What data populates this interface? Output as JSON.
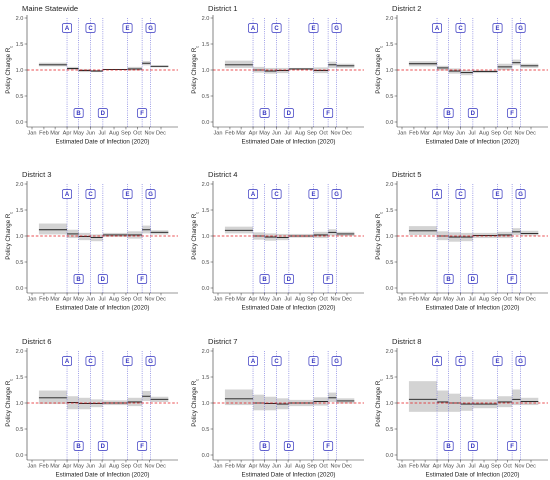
{
  "colors": {
    "reference_line": "#e41a1c",
    "policy_line": "#6c6cd9",
    "policy_label": "#3434c0",
    "band": "#cfcfcf",
    "estimate": "#1a1a1a",
    "axis": "#333333"
  },
  "chart_data": [
    {
      "type": "line",
      "title": "Maine Statewide",
      "xlabel": "Estimated Date of Infection (2020)",
      "ylabel": "Policy Change R",
      "ylabel_subscript": "t",
      "ylim": [
        0,
        2
      ],
      "grid": false,
      "y_ticks": [
        "0.0",
        "0.5",
        "1.0",
        "1.5",
        "2.0"
      ],
      "x_ticks": [
        "Jan",
        "Feb",
        "Mar",
        "Apr",
        "May",
        "Jun",
        "Jul",
        "Aug",
        "Sep",
        "Oct",
        "Nov",
        "Dec"
      ],
      "reference_line": 1.0,
      "policies": [
        {
          "label": "A",
          "date": "2020-04-01"
        },
        {
          "label": "B",
          "date": "2020-05-01"
        },
        {
          "label": "C",
          "date": "2020-06-01"
        },
        {
          "label": "D",
          "date": "2020-07-03"
        },
        {
          "label": "E",
          "date": "2020-09-05"
        },
        {
          "label": "F",
          "date": "2020-10-13"
        },
        {
          "label": "G",
          "date": "2020-11-04"
        }
      ],
      "segment_breaks": [
        "2020-01-19",
        "2020-04-01",
        "2020-05-01",
        "2020-06-01",
        "2020-07-03",
        "2020-09-05",
        "2020-10-13",
        "2020-11-04",
        "2020-12-20"
      ],
      "rt": [
        1.1,
        1.03,
        0.99,
        0.98,
        1.01,
        1.02,
        1.13,
        1.07
      ],
      "rt_lower": [
        1.07,
        1.0,
        0.96,
        0.96,
        1.0,
        0.99,
        1.09,
        1.05
      ],
      "rt_upper": [
        1.14,
        1.06,
        1.02,
        1.0,
        1.02,
        1.06,
        1.17,
        1.09
      ]
    },
    {
      "type": "line",
      "title": "District 1",
      "xlabel": "Estimated Date of Infection (2020)",
      "ylabel": "Policy Change R",
      "ylabel_subscript": "t",
      "ylim": [
        0,
        2
      ],
      "grid": false,
      "y_ticks": [
        "0.0",
        "0.5",
        "1.0",
        "1.5",
        "2.0"
      ],
      "x_ticks": [
        "Jan",
        "Feb",
        "Mar",
        "Apr",
        "May",
        "Jun",
        "Jul",
        "Aug",
        "Sep",
        "Oct",
        "Nov",
        "Dec"
      ],
      "reference_line": 1.0,
      "policies": [
        {
          "label": "A",
          "date": "2020-04-01"
        },
        {
          "label": "B",
          "date": "2020-05-01"
        },
        {
          "label": "C",
          "date": "2020-06-01"
        },
        {
          "label": "D",
          "date": "2020-07-03"
        },
        {
          "label": "E",
          "date": "2020-09-05"
        },
        {
          "label": "F",
          "date": "2020-10-13"
        },
        {
          "label": "G",
          "date": "2020-11-04"
        }
      ],
      "segment_breaks": [
        "2020-01-19",
        "2020-04-01",
        "2020-05-01",
        "2020-06-01",
        "2020-07-03",
        "2020-09-05",
        "2020-10-13",
        "2020-11-04",
        "2020-12-20"
      ],
      "rt": [
        1.1,
        1.0,
        0.98,
        0.99,
        1.02,
        0.99,
        1.1,
        1.08
      ],
      "rt_lower": [
        1.04,
        0.95,
        0.93,
        0.94,
        1.0,
        0.94,
        1.04,
        1.04
      ],
      "rt_upper": [
        1.18,
        1.06,
        1.04,
        1.04,
        1.04,
        1.05,
        1.16,
        1.12
      ]
    },
    {
      "type": "line",
      "title": "District 2",
      "xlabel": "Estimated Date of Infection (2020)",
      "ylabel": "Policy Change R",
      "ylabel_subscript": "t",
      "ylim": [
        0,
        2
      ],
      "grid": false,
      "y_ticks": [
        "0.0",
        "0.5",
        "1.0",
        "1.5",
        "2.0"
      ],
      "x_ticks": [
        "Jan",
        "Feb",
        "Mar",
        "Apr",
        "May",
        "Jun",
        "Jul",
        "Aug",
        "Sep",
        "Oct",
        "Nov",
        "Dec"
      ],
      "reference_line": 1.0,
      "policies": [
        {
          "label": "A",
          "date": "2020-04-01"
        },
        {
          "label": "B",
          "date": "2020-05-01"
        },
        {
          "label": "C",
          "date": "2020-06-01"
        },
        {
          "label": "D",
          "date": "2020-07-03"
        },
        {
          "label": "E",
          "date": "2020-09-05"
        },
        {
          "label": "F",
          "date": "2020-10-13"
        },
        {
          "label": "G",
          "date": "2020-11-04"
        }
      ],
      "segment_breaks": [
        "2020-01-19",
        "2020-04-01",
        "2020-05-01",
        "2020-06-01",
        "2020-07-03",
        "2020-09-05",
        "2020-10-13",
        "2020-11-04",
        "2020-12-20"
      ],
      "rt": [
        1.12,
        1.04,
        0.98,
        0.95,
        0.97,
        1.06,
        1.14,
        1.08
      ],
      "rt_lower": [
        1.07,
        0.99,
        0.93,
        0.9,
        0.94,
        1.0,
        1.09,
        1.04
      ],
      "rt_upper": [
        1.17,
        1.08,
        1.03,
        1.0,
        1.0,
        1.12,
        1.2,
        1.12
      ]
    },
    {
      "type": "line",
      "title": "District 3",
      "xlabel": "Estimated Date of Infection (2020)",
      "ylabel": "Policy Change R",
      "ylabel_subscript": "t",
      "ylim": [
        0,
        2
      ],
      "grid": false,
      "y_ticks": [
        "0.0",
        "0.5",
        "1.0",
        "1.5",
        "2.0"
      ],
      "x_ticks": [
        "Jan",
        "Feb",
        "Mar",
        "Apr",
        "May",
        "Jun",
        "Jul",
        "Aug",
        "Sep",
        "Oct",
        "Nov",
        "Dec"
      ],
      "reference_line": 1.0,
      "policies": [
        {
          "label": "A",
          "date": "2020-04-01"
        },
        {
          "label": "B",
          "date": "2020-05-01"
        },
        {
          "label": "C",
          "date": "2020-06-01"
        },
        {
          "label": "D",
          "date": "2020-07-03"
        },
        {
          "label": "E",
          "date": "2020-09-05"
        },
        {
          "label": "F",
          "date": "2020-10-13"
        },
        {
          "label": "G",
          "date": "2020-11-04"
        }
      ],
      "segment_breaks": [
        "2020-01-19",
        "2020-04-01",
        "2020-05-01",
        "2020-06-01",
        "2020-07-03",
        "2020-09-05",
        "2020-10-13",
        "2020-11-04",
        "2020-12-20"
      ],
      "rt": [
        1.12,
        1.04,
        0.99,
        0.97,
        1.02,
        1.02,
        1.12,
        1.07
      ],
      "rt_lower": [
        1.03,
        0.96,
        0.92,
        0.9,
        0.98,
        0.95,
        1.05,
        1.03
      ],
      "rt_upper": [
        1.24,
        1.12,
        1.06,
        1.03,
        1.06,
        1.09,
        1.2,
        1.11
      ]
    },
    {
      "type": "line",
      "title": "District 4",
      "xlabel": "Estimated Date of Infection (2020)",
      "ylabel": "Policy Change R",
      "ylabel_subscript": "t",
      "ylim": [
        0,
        2
      ],
      "grid": false,
      "y_ticks": [
        "0.0",
        "0.5",
        "1.0",
        "1.5",
        "2.0"
      ],
      "x_ticks": [
        "Jan",
        "Feb",
        "Mar",
        "Apr",
        "May",
        "Jun",
        "Jul",
        "Aug",
        "Sep",
        "Oct",
        "Nov",
        "Dec"
      ],
      "reference_line": 1.0,
      "policies": [
        {
          "label": "A",
          "date": "2020-04-01"
        },
        {
          "label": "B",
          "date": "2020-05-01"
        },
        {
          "label": "C",
          "date": "2020-06-01"
        },
        {
          "label": "D",
          "date": "2020-07-03"
        },
        {
          "label": "E",
          "date": "2020-09-05"
        },
        {
          "label": "F",
          "date": "2020-10-13"
        },
        {
          "label": "G",
          "date": "2020-11-04"
        }
      ],
      "segment_breaks": [
        "2020-01-19",
        "2020-04-01",
        "2020-05-01",
        "2020-06-01",
        "2020-07-03",
        "2020-09-05",
        "2020-10-13",
        "2020-11-04",
        "2020-12-20"
      ],
      "rt": [
        1.11,
        1.0,
        0.98,
        0.97,
        1.0,
        1.02,
        1.07,
        1.04
      ],
      "rt_lower": [
        1.05,
        0.93,
        0.91,
        0.92,
        0.97,
        0.96,
        1.01,
        1.0
      ],
      "rt_upper": [
        1.18,
        1.07,
        1.05,
        1.04,
        1.04,
        1.08,
        1.13,
        1.08
      ]
    },
    {
      "type": "line",
      "title": "District 5",
      "xlabel": "Estimated Date of Infection (2020)",
      "ylabel": "Policy Change R",
      "ylabel_subscript": "t",
      "ylim": [
        0,
        2
      ],
      "grid": false,
      "y_ticks": [
        "0.0",
        "0.5",
        "1.0",
        "1.5",
        "2.0"
      ],
      "x_ticks": [
        "Jan",
        "Feb",
        "Mar",
        "Apr",
        "May",
        "Jun",
        "Jul",
        "Aug",
        "Sep",
        "Oct",
        "Nov",
        "Dec"
      ],
      "reference_line": 1.0,
      "policies": [
        {
          "label": "A",
          "date": "2020-04-01"
        },
        {
          "label": "B",
          "date": "2020-05-01"
        },
        {
          "label": "C",
          "date": "2020-06-01"
        },
        {
          "label": "D",
          "date": "2020-07-03"
        },
        {
          "label": "E",
          "date": "2020-09-05"
        },
        {
          "label": "F",
          "date": "2020-10-13"
        },
        {
          "label": "G",
          "date": "2020-11-04"
        }
      ],
      "segment_breaks": [
        "2020-01-19",
        "2020-04-01",
        "2020-05-01",
        "2020-06-01",
        "2020-07-03",
        "2020-09-05",
        "2020-10-13",
        "2020-11-04",
        "2020-12-20"
      ],
      "rt": [
        1.1,
        1.0,
        0.98,
        0.98,
        1.01,
        1.02,
        1.08,
        1.05
      ],
      "rt_lower": [
        1.02,
        0.92,
        0.89,
        0.9,
        0.96,
        0.96,
        1.02,
        1.01
      ],
      "rt_upper": [
        1.19,
        1.09,
        1.07,
        1.06,
        1.06,
        1.08,
        1.15,
        1.1
      ]
    },
    {
      "type": "line",
      "title": "District 6",
      "xlabel": "Estimated Date of Infection (2020)",
      "ylabel": "Policy Change R",
      "ylabel_subscript": "t",
      "ylim": [
        0,
        2
      ],
      "grid": false,
      "y_ticks": [
        "0.0",
        "0.5",
        "1.0",
        "1.5",
        "2.0"
      ],
      "x_ticks": [
        "Jan",
        "Feb",
        "Mar",
        "Apr",
        "May",
        "Jun",
        "Jul",
        "Aug",
        "Sep",
        "Oct",
        "Nov",
        "Dec"
      ],
      "reference_line": 1.0,
      "policies": [
        {
          "label": "A",
          "date": "2020-04-01"
        },
        {
          "label": "B",
          "date": "2020-05-01"
        },
        {
          "label": "C",
          "date": "2020-06-01"
        },
        {
          "label": "D",
          "date": "2020-07-03"
        },
        {
          "label": "E",
          "date": "2020-09-05"
        },
        {
          "label": "F",
          "date": "2020-10-13"
        },
        {
          "label": "G",
          "date": "2020-11-04"
        }
      ],
      "segment_breaks": [
        "2020-01-19",
        "2020-04-01",
        "2020-05-01",
        "2020-06-01",
        "2020-07-03",
        "2020-09-05",
        "2020-10-13",
        "2020-11-04",
        "2020-12-20"
      ],
      "rt": [
        1.1,
        1.01,
        0.99,
        0.99,
        1.0,
        1.02,
        1.13,
        1.07
      ],
      "rt_lower": [
        0.98,
        0.88,
        0.88,
        0.92,
        0.96,
        0.94,
        1.04,
        1.02
      ],
      "rt_upper": [
        1.24,
        1.13,
        1.1,
        1.07,
        1.05,
        1.1,
        1.23,
        1.12
      ]
    },
    {
      "type": "line",
      "title": "District 7",
      "xlabel": "Estimated Date of Infection (2020)",
      "ylabel": "Policy Change R",
      "ylabel_subscript": "t",
      "ylim": [
        0,
        2
      ],
      "grid": false,
      "y_ticks": [
        "0.0",
        "0.5",
        "1.0",
        "1.5",
        "2.0"
      ],
      "x_ticks": [
        "Jan",
        "Feb",
        "Mar",
        "Apr",
        "May",
        "Jun",
        "Jul",
        "Aug",
        "Sep",
        "Oct",
        "Nov",
        "Dec"
      ],
      "reference_line": 1.0,
      "policies": [
        {
          "label": "A",
          "date": "2020-04-01"
        },
        {
          "label": "B",
          "date": "2020-05-01"
        },
        {
          "label": "C",
          "date": "2020-06-01"
        },
        {
          "label": "D",
          "date": "2020-07-03"
        },
        {
          "label": "E",
          "date": "2020-09-05"
        },
        {
          "label": "F",
          "date": "2020-10-13"
        },
        {
          "label": "G",
          "date": "2020-11-04"
        }
      ],
      "segment_breaks": [
        "2020-01-19",
        "2020-04-01",
        "2020-05-01",
        "2020-06-01",
        "2020-07-03",
        "2020-09-05",
        "2020-10-13",
        "2020-11-04",
        "2020-12-20"
      ],
      "rt": [
        1.08,
        1.0,
        0.99,
        0.98,
        1.0,
        1.03,
        1.1,
        1.04
      ],
      "rt_lower": [
        0.96,
        0.86,
        0.86,
        0.88,
        0.94,
        0.95,
        1.02,
        0.99
      ],
      "rt_upper": [
        1.26,
        1.16,
        1.12,
        1.09,
        1.06,
        1.11,
        1.2,
        1.09
      ]
    },
    {
      "type": "line",
      "title": "District 8",
      "xlabel": "Estimated Date of Infection (2020)",
      "ylabel": "Policy Change R",
      "ylabel_subscript": "t",
      "ylim": [
        0,
        2
      ],
      "grid": false,
      "y_ticks": [
        "0.0",
        "0.5",
        "1.0",
        "1.5",
        "2.0"
      ],
      "x_ticks": [
        "Jan",
        "Feb",
        "Mar",
        "Apr",
        "May",
        "Jun",
        "Jul",
        "Aug",
        "Sep",
        "Oct",
        "Nov",
        "Dec"
      ],
      "reference_line": 1.0,
      "policies": [
        {
          "label": "A",
          "date": "2020-04-01"
        },
        {
          "label": "B",
          "date": "2020-05-01"
        },
        {
          "label": "C",
          "date": "2020-06-01"
        },
        {
          "label": "D",
          "date": "2020-07-03"
        },
        {
          "label": "E",
          "date": "2020-09-05"
        },
        {
          "label": "F",
          "date": "2020-10-13"
        },
        {
          "label": "G",
          "date": "2020-11-04"
        }
      ],
      "segment_breaks": [
        "2020-01-19",
        "2020-04-01",
        "2020-05-01",
        "2020-06-01",
        "2020-07-03",
        "2020-09-05",
        "2020-10-13",
        "2020-11-04",
        "2020-12-20"
      ],
      "rt": [
        1.07,
        1.02,
        1.0,
        0.98,
        0.98,
        1.02,
        1.07,
        1.03
      ],
      "rt_lower": [
        0.83,
        0.83,
        0.83,
        0.85,
        0.9,
        0.92,
        0.96,
        0.96
      ],
      "rt_upper": [
        1.42,
        1.24,
        1.18,
        1.12,
        1.07,
        1.13,
        1.26,
        1.1
      ]
    }
  ]
}
